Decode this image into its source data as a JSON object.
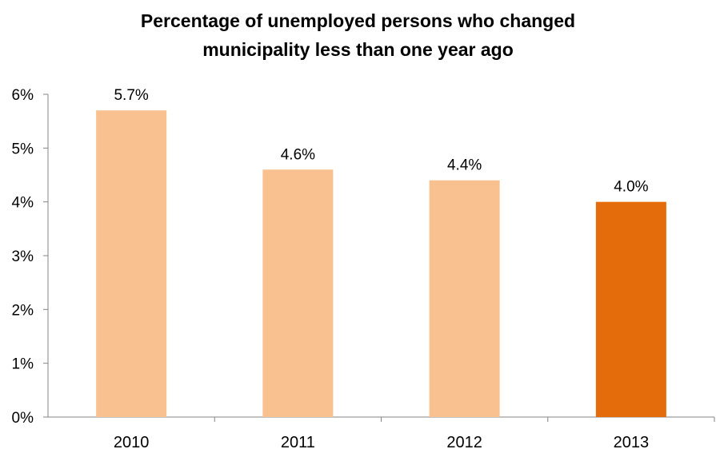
{
  "chart_data": {
    "type": "bar",
    "title": "Percentage of unemployed persons who changed municipality less than one year ago",
    "title_lines": [
      "Percentage of unemployed persons who changed",
      "municipality less than one year ago"
    ],
    "categories": [
      "2010",
      "2011",
      "2012",
      "2013"
    ],
    "values": [
      5.7,
      4.6,
      4.4,
      4.0
    ],
    "data_labels": [
      "5.7%",
      "4.6%",
      "4.4%",
      "4.0%"
    ],
    "unit": "%",
    "ylim": [
      0,
      6
    ],
    "yticks": [
      0,
      1,
      2,
      3,
      4,
      5,
      6
    ],
    "ytick_labels": [
      "0%",
      "1%",
      "2%",
      "3%",
      "4%",
      "5%",
      "6%"
    ],
    "xlabel": "",
    "ylabel": "",
    "grid": false,
    "legend": "none",
    "colors": [
      "#F9C090",
      "#F9C090",
      "#F9C090",
      "#E46C0A"
    ]
  }
}
